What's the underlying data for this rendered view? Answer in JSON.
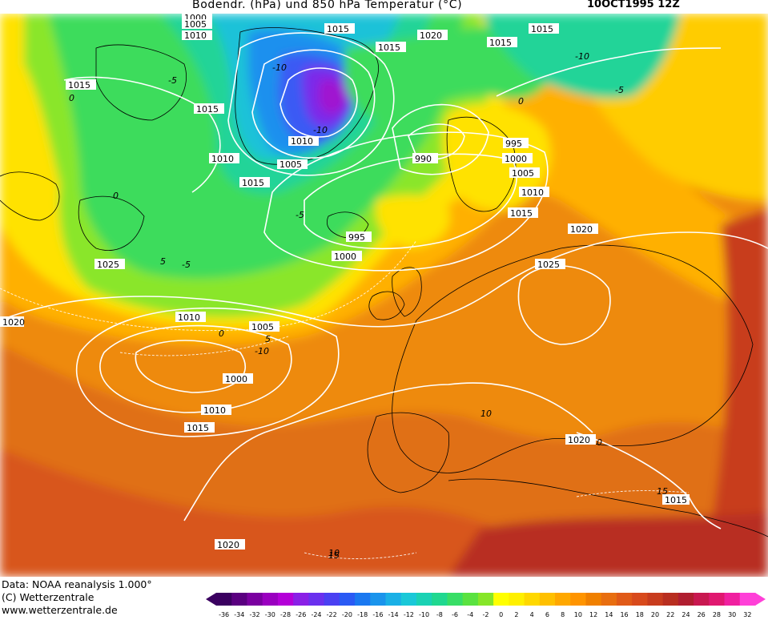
{
  "header": {
    "title": "Bodendr. (hPa) und 850 hPa Temperatur (°C)",
    "date": "10OCT1995 12Z"
  },
  "footer": {
    "data_line": "Data: NOAA reanalysis 1.000°",
    "copyright": "(C) Wetterzentrale",
    "url": "www.wetterzentrale.de"
  },
  "legend": {
    "ticks": [
      "-36",
      "-34",
      "-32",
      "-30",
      "-28",
      "-26",
      "-24",
      "-22",
      "-20",
      "-18",
      "-16",
      "-14",
      "-12",
      "-10",
      "-8",
      "-6",
      "-4",
      "-2",
      "0",
      "2",
      "4",
      "6",
      "8",
      "10",
      "12",
      "14",
      "16",
      "18",
      "20",
      "22",
      "24",
      "26",
      "28",
      "30",
      "32"
    ],
    "colors": [
      "#3a0060",
      "#5a0080",
      "#7a00a0",
      "#9a00c0",
      "#b400d8",
      "#8a20e6",
      "#6a30ee",
      "#4a40f2",
      "#2a5af4",
      "#1a78f0",
      "#1a94ec",
      "#1ab0e6",
      "#1ac8d8",
      "#1ad2b4",
      "#20d890",
      "#38de66",
      "#5ae240",
      "#86e628",
      "#ffff00",
      "#fff000",
      "#ffd800",
      "#ffc000",
      "#ffa800",
      "#ff9400",
      "#f08000",
      "#e86e10",
      "#e05a18",
      "#d84a1c",
      "#c83c1e",
      "#b82e20",
      "#b01e30",
      "#c81850",
      "#e01870",
      "#f020a0",
      "#ff40d8"
    ]
  },
  "isobars": [
    "1000",
    "1005",
    "1010",
    "1015",
    "1020",
    "1015",
    "1015",
    "1015",
    "1015",
    "1010",
    "1015",
    "990",
    "995",
    "1000",
    "1005",
    "1010",
    "1015",
    "1020",
    "1025",
    "1025",
    "995",
    "1000",
    "1005",
    "1010",
    "1015",
    "1000",
    "1010",
    "1015",
    "1020",
    "1020",
    "1020",
    "1015",
    "1010",
    "1005",
    "1015",
    "1015",
    "1020",
    "1020"
  ],
  "temp_labels": [
    "-10",
    "-5",
    "-5",
    "-5",
    "-5",
    "-10",
    "-10",
    "-10",
    "0",
    "0",
    "0",
    "0",
    "0",
    "5",
    "5",
    "10",
    "10",
    "15",
    "15"
  ],
  "colors": {
    "isobar": "#ffffff",
    "land_outline": "#000000",
    "sea_dark": "#6a30ee",
    "warm": "#e86e10"
  }
}
